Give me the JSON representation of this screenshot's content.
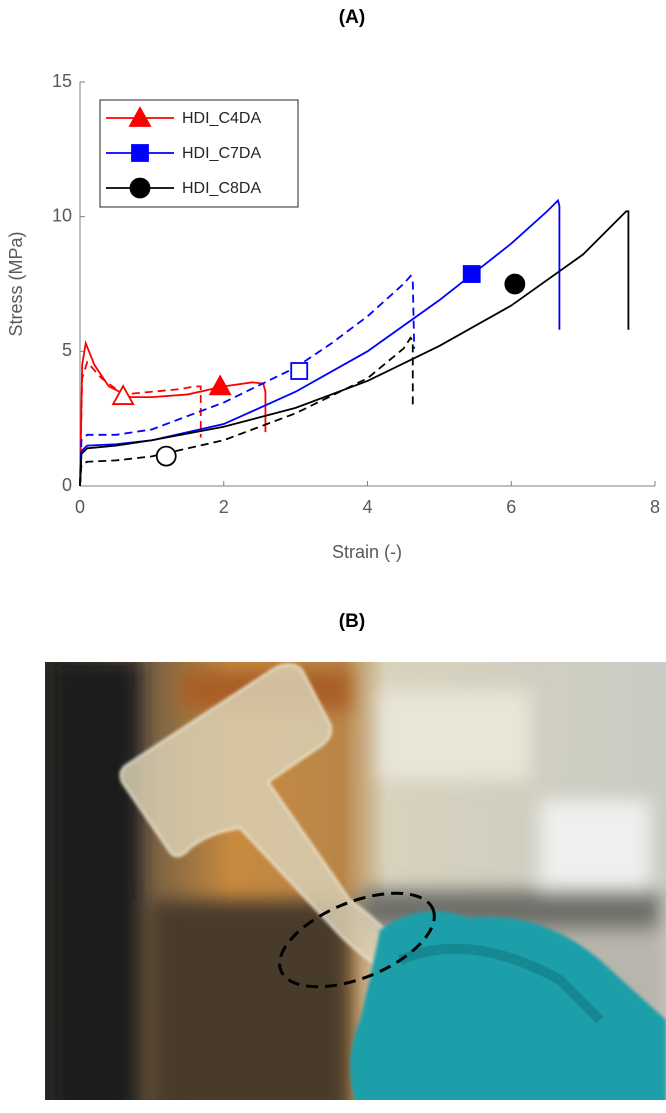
{
  "panels": {
    "a_label": "(A)",
    "b_label": "(B)"
  },
  "chart_data": {
    "type": "line",
    "x_label": "Strain (-)",
    "y_label": "Stress (MPa)",
    "xlim": [
      0,
      8
    ],
    "ylim": [
      0,
      15
    ],
    "xticks": [
      0,
      2,
      4,
      6,
      8
    ],
    "yticks": [
      0,
      5,
      10,
      15
    ],
    "legend": "upper left",
    "series": [
      {
        "name": "HDI_C4DA",
        "color": "#ff0000",
        "dashed": false,
        "x": [
          0,
          0.03,
          0.08,
          0.2,
          0.4,
          0.7,
          1.0,
          1.5,
          2.0,
          2.4,
          2.55,
          2.58,
          2.58
        ],
        "values": [
          0,
          4.5,
          5.3,
          4.5,
          3.7,
          3.3,
          3.3,
          3.4,
          3.7,
          3.85,
          3.8,
          3.5,
          2.0
        ],
        "marker": {
          "shape": "triangle",
          "filled": true,
          "x": 1.95,
          "y": 3.7
        }
      },
      {
        "color": "#ff0000",
        "dashed": true,
        "x": [
          0,
          0.03,
          0.1,
          0.3,
          0.6,
          1.0,
          1.4,
          1.6,
          1.68,
          1.68
        ],
        "values": [
          0,
          4.0,
          4.6,
          4.0,
          3.4,
          3.5,
          3.6,
          3.7,
          3.7,
          1.8
        ],
        "marker": {
          "shape": "triangle",
          "filled": false,
          "x": 0.6,
          "y": 3.34
        }
      },
      {
        "name": "HDI_C7DA",
        "color": "#0000ff",
        "dashed": false,
        "x": [
          0,
          0.02,
          0.1,
          0.5,
          1.0,
          2.0,
          3.0,
          4.0,
          5.0,
          6.0,
          6.5,
          6.65,
          6.67,
          6.67
        ],
        "values": [
          0,
          1.3,
          1.5,
          1.55,
          1.7,
          2.3,
          3.5,
          5.0,
          6.9,
          9.0,
          10.2,
          10.6,
          10.4,
          5.8
        ],
        "marker": {
          "shape": "square",
          "filled": true,
          "x": 5.45,
          "y": 7.87
        }
      },
      {
        "color": "#0000ff",
        "dashed": true,
        "x": [
          0,
          0.02,
          0.1,
          0.5,
          1.0,
          2.0,
          3.0,
          3.5,
          4.0,
          4.5,
          4.6,
          4.63,
          4.65
        ],
        "values": [
          0,
          1.7,
          1.9,
          1.9,
          2.1,
          3.1,
          4.4,
          5.3,
          6.3,
          7.5,
          7.8,
          7.6,
          5.1
        ],
        "marker": {
          "shape": "square",
          "filled": false,
          "x": 3.05,
          "y": 4.27
        }
      },
      {
        "name": "HDI_C8DA",
        "color": "#000000",
        "dashed": false,
        "x": [
          0,
          0.02,
          0.1,
          0.5,
          1.0,
          2.0,
          3.0,
          4.0,
          5.0,
          6.0,
          7.0,
          7.6,
          7.63,
          7.63
        ],
        "values": [
          0,
          1.2,
          1.4,
          1.5,
          1.7,
          2.2,
          2.9,
          3.9,
          5.2,
          6.7,
          8.6,
          10.2,
          10.2,
          5.8
        ],
        "marker": {
          "shape": "circle",
          "filled": true,
          "x": 6.05,
          "y": 7.5
        }
      },
      {
        "color": "#000000",
        "dashed": true,
        "x": [
          0,
          0.02,
          0.1,
          0.5,
          1.0,
          2.0,
          3.0,
          4.0,
          4.5,
          4.6,
          4.63,
          4.63
        ],
        "values": [
          0,
          0.8,
          0.9,
          0.95,
          1.1,
          1.7,
          2.7,
          4.0,
          5.1,
          5.5,
          5.4,
          3.0
        ],
        "marker": {
          "shape": "circle",
          "filled": false,
          "x": 1.2,
          "y": 1.11
        }
      }
    ]
  }
}
